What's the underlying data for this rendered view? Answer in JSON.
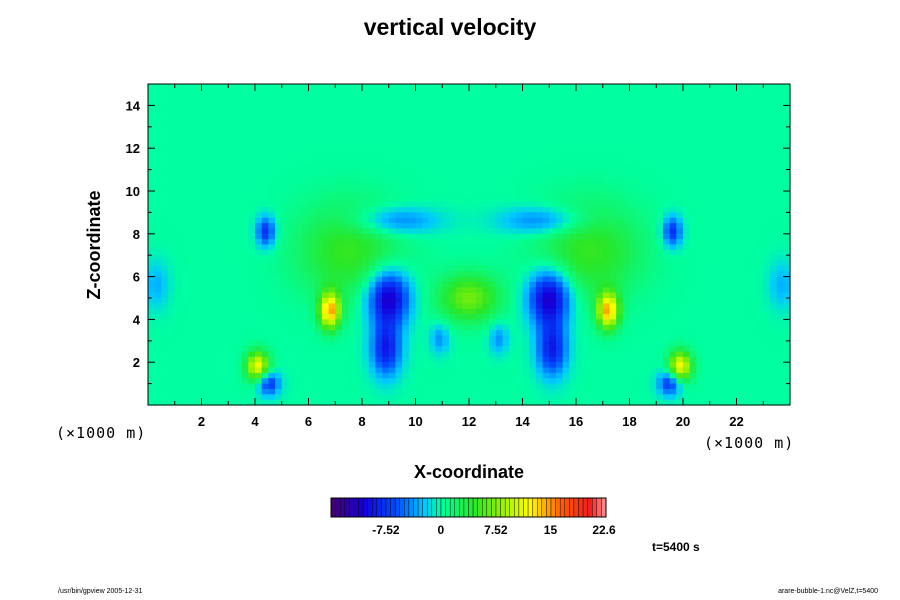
{
  "chart_data": {
    "type": "heatmap",
    "title": "vertical velocity",
    "xlabel": "X-coordinate",
    "ylabel": "Z-coordinate",
    "x_unit_label": "(×1000 m)",
    "z_unit_label": "(×1000 m)",
    "xlim": [
      0,
      24
    ],
    "ylim": [
      0,
      15
    ],
    "x_ticks": [
      2,
      4,
      6,
      8,
      10,
      12,
      14,
      16,
      18,
      20,
      22
    ],
    "y_ticks": [
      2,
      4,
      6,
      8,
      10,
      12,
      14
    ],
    "colorbar": {
      "min": -15.04,
      "max": 22.6,
      "tick_values": [
        -7.52,
        0,
        7.52,
        15,
        22.6
      ],
      "tick_labels": [
        "-7.52",
        "0",
        "7.52",
        "15",
        "22.6"
      ],
      "colormap": "rainbow"
    },
    "background_value": 0,
    "features": [
      {
        "x": 9.0,
        "z": 5.0,
        "value": -12,
        "sx": 0.55,
        "sz": 0.9
      },
      {
        "x": 15.0,
        "z": 5.0,
        "value": -12,
        "sx": 0.55,
        "sz": 0.9
      },
      {
        "x": 8.9,
        "z": 2.6,
        "value": -9,
        "sx": 0.4,
        "sz": 0.9
      },
      {
        "x": 15.1,
        "z": 2.6,
        "value": -9,
        "sx": 0.4,
        "sz": 0.9
      },
      {
        "x": 6.8,
        "z": 4.4,
        "value": 14,
        "sx": 0.28,
        "sz": 0.6
      },
      {
        "x": 17.2,
        "z": 4.4,
        "value": 14,
        "sx": 0.28,
        "sz": 0.6
      },
      {
        "x": 4.1,
        "z": 1.8,
        "value": 12,
        "sx": 0.3,
        "sz": 0.5
      },
      {
        "x": 19.9,
        "z": 1.8,
        "value": 12,
        "sx": 0.3,
        "sz": 0.5
      },
      {
        "x": 4.5,
        "z": 1.0,
        "value": -8,
        "sx": 0.3,
        "sz": 0.4
      },
      {
        "x": 19.5,
        "z": 1.0,
        "value": -8,
        "sx": 0.3,
        "sz": 0.4
      },
      {
        "x": 4.4,
        "z": 8.1,
        "value": -8,
        "sx": 0.25,
        "sz": 0.5
      },
      {
        "x": 19.6,
        "z": 8.1,
        "value": -8,
        "sx": 0.25,
        "sz": 0.5
      },
      {
        "x": 9.3,
        "z": 8.6,
        "value": -5,
        "sx": 1.1,
        "sz": 0.45
      },
      {
        "x": 14.7,
        "z": 8.6,
        "value": -5,
        "sx": 1.1,
        "sz": 0.45
      },
      {
        "x": 12.0,
        "z": 5.0,
        "value": 7,
        "sx": 0.8,
        "sz": 0.8
      },
      {
        "x": 7.5,
        "z": 7.2,
        "value": 5,
        "sx": 1.4,
        "sz": 1.6
      },
      {
        "x": 16.5,
        "z": 7.2,
        "value": 5,
        "sx": 1.4,
        "sz": 1.6
      },
      {
        "x": 10.9,
        "z": 3.1,
        "value": -4,
        "sx": 0.25,
        "sz": 0.5
      },
      {
        "x": 13.1,
        "z": 3.1,
        "value": -4,
        "sx": 0.25,
        "sz": 0.5
      },
      {
        "x": 0.3,
        "z": 5.6,
        "value": -3,
        "sx": 0.35,
        "sz": 0.8
      },
      {
        "x": 23.7,
        "z": 5.6,
        "value": -3,
        "sx": 0.35,
        "sz": 0.8
      }
    ]
  },
  "time_label": "t=5400 s",
  "footer": {
    "left": "/usr/bin/gpview 2005-12-31",
    "right": "arare-bubble-1.nc@VelZ,t=5400"
  }
}
